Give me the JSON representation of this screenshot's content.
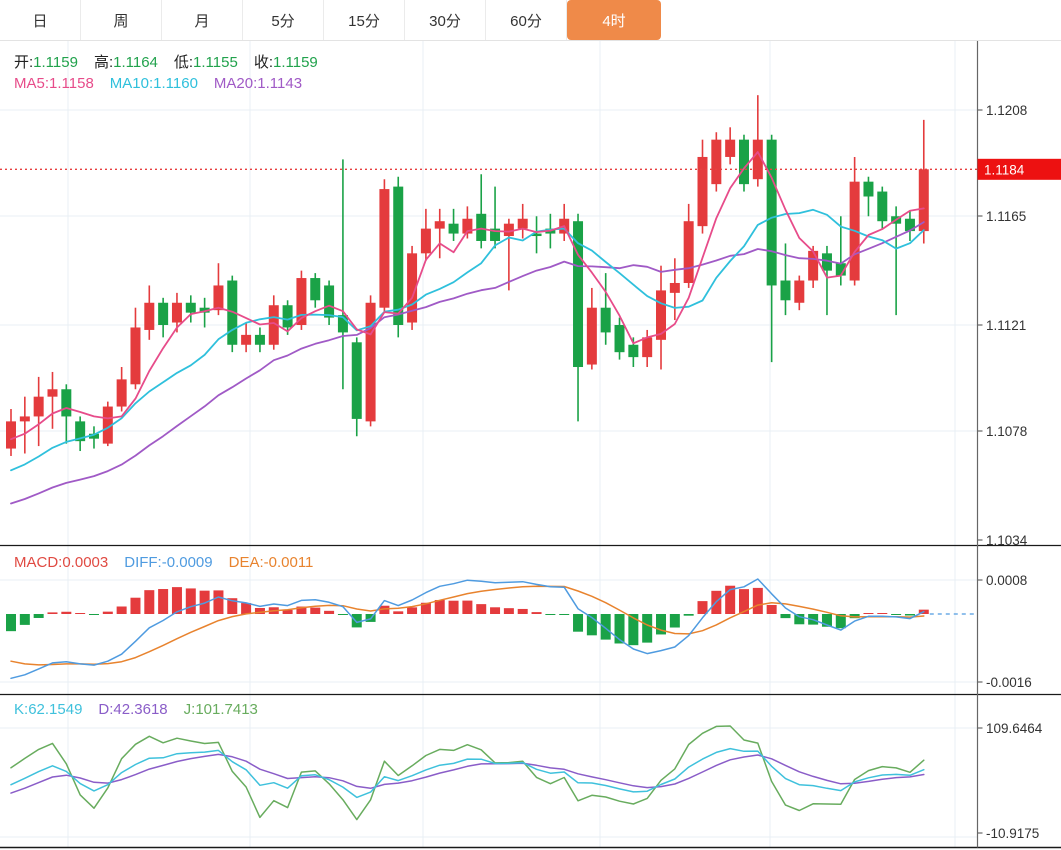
{
  "tabs": [
    {
      "key": "day",
      "label": "日",
      "selected": false
    },
    {
      "key": "week",
      "label": "周",
      "selected": false
    },
    {
      "key": "month",
      "label": "月",
      "selected": false
    },
    {
      "key": "5min",
      "label": "5分",
      "selected": false
    },
    {
      "key": "15min",
      "label": "15分",
      "selected": false
    },
    {
      "key": "30min",
      "label": "30分",
      "selected": false
    },
    {
      "key": "60min",
      "label": "60分",
      "selected": false
    },
    {
      "key": "4hour",
      "label": "4时",
      "selected": true
    }
  ],
  "colors": {
    "up": "#e43b3d",
    "down": "#1aa247",
    "selected_tab": "#ef8a49",
    "ma5": "#e74c8a",
    "ma10": "#2fc0dc",
    "ma20": "#a05ac6",
    "diff": "#4f9be0",
    "dea": "#e8832e",
    "macd_label": "#e04a42",
    "k": "#3fc1dc",
    "d": "#8a5dc8",
    "j": "#68ac5e",
    "ohlc_value": "#21a24c",
    "price_line": "#e64040",
    "badge_bg": "#ed1111",
    "grid": "#e9eff4",
    "axis_text": "#333333"
  },
  "main_legend": {
    "ohlc": [
      {
        "label": "开:",
        "value": "1.1159"
      },
      {
        "label": "高:",
        "value": "1.1164"
      },
      {
        "label": "低:",
        "value": "1.1155"
      },
      {
        "label": "收:",
        "value": "1.1159"
      }
    ],
    "ma": [
      {
        "label": "MA5:",
        "value": "1.1158",
        "color": "#e74c8a"
      },
      {
        "label": "MA10:",
        "value": "1.1160",
        "color": "#2fc0dc"
      },
      {
        "label": "MA20:",
        "value": "1.1143",
        "color": "#a05ac6"
      }
    ]
  },
  "macd_legend": [
    {
      "label": "MACD:",
      "value": "0.0003",
      "color": "#e04a42"
    },
    {
      "label": "DIFF:",
      "value": "-0.0009",
      "color": "#4f9be0"
    },
    {
      "label": "DEA:",
      "value": "-0.0011",
      "color": "#e8832e"
    }
  ],
  "kdj_legend": [
    {
      "label": "K:",
      "value": "62.1549",
      "color": "#3fc1dc"
    },
    {
      "label": "D:",
      "value": "42.3618",
      "color": "#8a5dc8"
    },
    {
      "label": "J:",
      "value": "101.7413",
      "color": "#68ac5e"
    }
  ],
  "axes": {
    "main_labels": [
      {
        "text": "1.1208",
        "price": 1.1208
      },
      {
        "text": "1.1165",
        "price": 1.1165
      },
      {
        "text": "1.1121",
        "price": 1.1121
      },
      {
        "text": "1.1078",
        "price": 1.1078
      },
      {
        "text": "1.1034",
        "price": 1.1034
      }
    ],
    "current_price": {
      "text": "1.1184",
      "price": 1.1184
    },
    "macd_labels": [
      {
        "text": "0.0008",
        "value": 0.0008
      },
      {
        "text": "-0.0016",
        "value": -0.0016
      }
    ],
    "kdj_labels": [
      {
        "text": "109.6464",
        "value": 109.6464
      },
      {
        "text": "-10.9175",
        "value": -10.9175
      }
    ]
  },
  "chart_data": {
    "type": "candlestick",
    "panels": [
      "price+MA5/10/20",
      "MACD(12,26,9)",
      "KDJ(9,3,3)"
    ],
    "candles": [
      [
        1.1071,
        1.1087,
        1.1068,
        1.1082
      ],
      [
        1.1082,
        1.1092,
        1.1069,
        1.1084
      ],
      [
        1.1084,
        1.11,
        1.1072,
        1.1092
      ],
      [
        1.1092,
        1.1102,
        1.1079,
        1.1095
      ],
      [
        1.1095,
        1.1097,
        1.1073,
        1.1084
      ],
      [
        1.1082,
        1.1084,
        1.107,
        1.1074
      ],
      [
        1.1077,
        1.108,
        1.1071,
        1.1075
      ],
      [
        1.1073,
        1.109,
        1.1072,
        1.1088
      ],
      [
        1.1088,
        1.1104,
        1.1086,
        1.1099
      ],
      [
        1.1097,
        1.1128,
        1.1095,
        1.112
      ],
      [
        1.1119,
        1.1137,
        1.1115,
        1.113
      ],
      [
        1.113,
        1.1132,
        1.1116,
        1.1121
      ],
      [
        1.1122,
        1.1134,
        1.1118,
        1.113
      ],
      [
        1.113,
        1.1133,
        1.1122,
        1.1126
      ],
      [
        1.1128,
        1.1132,
        1.112,
        1.1126
      ],
      [
        1.1127,
        1.1146,
        1.1125,
        1.1137
      ],
      [
        1.1139,
        1.1141,
        1.111,
        1.1113
      ],
      [
        1.1113,
        1.1122,
        1.111,
        1.1117
      ],
      [
        1.1117,
        1.112,
        1.111,
        1.1113
      ],
      [
        1.1113,
        1.1133,
        1.1111,
        1.1129
      ],
      [
        1.1129,
        1.1131,
        1.1117,
        1.112
      ],
      [
        1.1121,
        1.1143,
        1.1119,
        1.114
      ],
      [
        1.114,
        1.1142,
        1.1128,
        1.1131
      ],
      [
        1.1137,
        1.1139,
        1.1121,
        1.1124
      ],
      [
        1.1125,
        1.1188,
        1.1095,
        1.1118
      ],
      [
        1.1114,
        1.1116,
        1.1076,
        1.1083
      ],
      [
        1.1082,
        1.1133,
        1.108,
        1.113
      ],
      [
        1.1128,
        1.118,
        1.1126,
        1.1176
      ],
      [
        1.1177,
        1.1181,
        1.1116,
        1.1121
      ],
      [
        1.1122,
        1.1153,
        1.1119,
        1.115
      ],
      [
        1.115,
        1.1168,
        1.1147,
        1.116
      ],
      [
        1.116,
        1.1168,
        1.1148,
        1.1163
      ],
      [
        1.1162,
        1.1168,
        1.1155,
        1.1158
      ],
      [
        1.1158,
        1.1169,
        1.1156,
        1.1164
      ],
      [
        1.1166,
        1.1182,
        1.1152,
        1.1155
      ],
      [
        1.116,
        1.1177,
        1.1152,
        1.1155
      ],
      [
        1.1157,
        1.1164,
        1.1135,
        1.1162
      ],
      [
        1.116,
        1.117,
        1.1156,
        1.1164
      ],
      [
        1.1158,
        1.1165,
        1.115,
        1.1157
      ],
      [
        1.116,
        1.1166,
        1.1152,
        1.1158
      ],
      [
        1.1158,
        1.117,
        1.1155,
        1.1164
      ],
      [
        1.1163,
        1.1166,
        1.1082,
        1.1104
      ],
      [
        1.1105,
        1.1136,
        1.1103,
        1.1128
      ],
      [
        1.1128,
        1.1142,
        1.1113,
        1.1118
      ],
      [
        1.1121,
        1.1124,
        1.1107,
        1.111
      ],
      [
        1.1113,
        1.1116,
        1.1104,
        1.1108
      ],
      [
        1.1108,
        1.1119,
        1.1104,
        1.1116
      ],
      [
        1.1115,
        1.1145,
        1.1103,
        1.1135
      ],
      [
        1.1134,
        1.1148,
        1.1123,
        1.1138
      ],
      [
        1.1138,
        1.117,
        1.1136,
        1.1163
      ],
      [
        1.1161,
        1.1196,
        1.1158,
        1.1189
      ],
      [
        1.1178,
        1.1199,
        1.1175,
        1.1196
      ],
      [
        1.1189,
        1.1201,
        1.1186,
        1.1196
      ],
      [
        1.1196,
        1.1198,
        1.1175,
        1.1178
      ],
      [
        1.118,
        1.1214,
        1.1177,
        1.1196
      ],
      [
        1.1196,
        1.1198,
        1.1106,
        1.1137
      ],
      [
        1.1139,
        1.1154,
        1.1125,
        1.1131
      ],
      [
        1.113,
        1.1141,
        1.1127,
        1.1139
      ],
      [
        1.1139,
        1.1153,
        1.1136,
        1.1151
      ],
      [
        1.115,
        1.1153,
        1.1125,
        1.1143
      ],
      [
        1.1146,
        1.1165,
        1.1137,
        1.1141
      ],
      [
        1.1139,
        1.1189,
        1.1137,
        1.1179
      ],
      [
        1.1179,
        1.1181,
        1.1165,
        1.1173
      ],
      [
        1.1175,
        1.1177,
        1.116,
        1.1163
      ],
      [
        1.1165,
        1.1169,
        1.1125,
        1.1162
      ],
      [
        1.1164,
        1.1167,
        1.1155,
        1.1159
      ],
      [
        1.1159,
        1.1204,
        1.1154,
        1.1184
      ]
    ],
    "reconstruction": {
      "ma_seeds": {
        "ma5": 1.1073,
        "ma10": 1.106,
        "ma20": 1.1047
      },
      "macd_seed": {
        "diff": -0.0009,
        "dea": -0.0005,
        "render_shift": -0.0006
      },
      "kdj_seed": {
        "k": 30,
        "d": 30
      }
    }
  }
}
